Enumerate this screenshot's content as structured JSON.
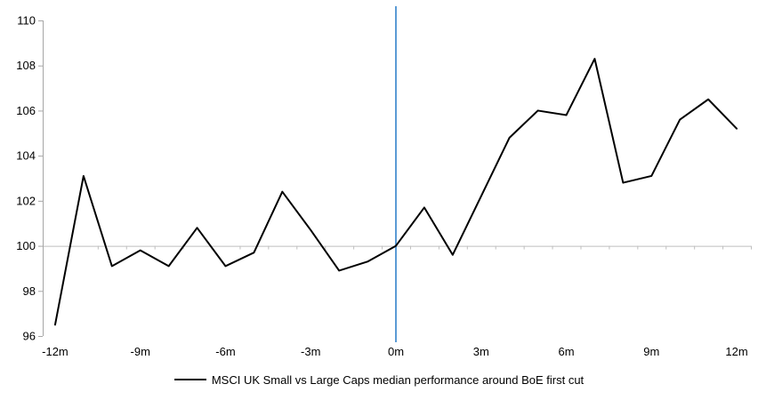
{
  "chart_data": {
    "type": "line",
    "title": "",
    "xlabel": "",
    "ylabel": "",
    "x_months": [
      -12,
      -11,
      -10,
      -9,
      -8,
      -7,
      -6,
      -5,
      -4,
      -3,
      -2,
      -1,
      0,
      1,
      2,
      3,
      4,
      5,
      6,
      7,
      8,
      9,
      10,
      11,
      12
    ],
    "series": [
      {
        "name": "MSCI UK Small vs Large Caps median performance around BoE first cut",
        "color": "#000000",
        "values": [
          96.5,
          103.1,
          99.1,
          99.8,
          99.1,
          100.8,
          99.1,
          99.7,
          102.4,
          100.7,
          98.9,
          99.3,
          100.0,
          101.7,
          99.6,
          102.2,
          104.8,
          106.0,
          105.8,
          108.3,
          102.8,
          103.1,
          105.6,
          106.5,
          105.2
        ]
      }
    ],
    "x_axis": {
      "tick_values": [
        -12,
        -9,
        -6,
        -3,
        0,
        3,
        6,
        9,
        12
      ],
      "tick_labels": [
        "-12m",
        "-9m",
        "-6m",
        "-3m",
        "0m",
        "3m",
        "6m",
        "9m",
        "12m"
      ],
      "range": [
        -12.5,
        12.5
      ]
    },
    "y_axis": {
      "tick_values": [
        96,
        98,
        100,
        102,
        104,
        106,
        108,
        110
      ],
      "tick_labels": [
        "96",
        "98",
        "100",
        "102",
        "104",
        "106",
        "108",
        "110"
      ],
      "range": [
        96,
        110
      ]
    },
    "reference_lines": {
      "horizontal_at": 100,
      "vertical_at": 0
    },
    "colors": {
      "series": "#000000",
      "event_line": "#5b9bd5",
      "axis": "#a6a6a6",
      "baseline": "#bfbfbf",
      "label_text": "#000000"
    },
    "legend": {
      "label": "MSCI UK Small vs Large Caps median performance around BoE first cut",
      "position": "bottom-center"
    },
    "grid": "off"
  }
}
